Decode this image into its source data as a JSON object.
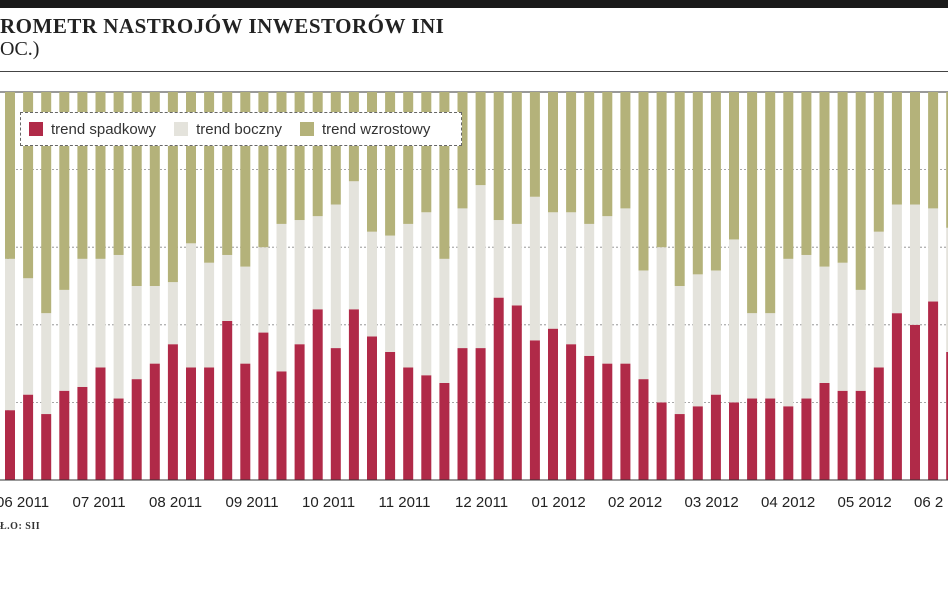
{
  "header": {
    "title": "ROMETR NASTROJÓW INWESTORÓW INI",
    "subtitle": "OC.)"
  },
  "source": "Ł.O: SII",
  "colors": {
    "spadkowy": "#b02a48",
    "boczny": "#e4e3dc",
    "wzrostowy": "#b4b27a",
    "grid": "#888888"
  },
  "chart_data": {
    "type": "bar",
    "stacked": true,
    "ylim": [
      0,
      100
    ],
    "grid": true,
    "legend_position": "top-left",
    "legend": [
      "trend spadkowy",
      "trend boczny",
      "trend wzrostowy"
    ],
    "month_labels": [
      "06 2011",
      "07 2011",
      "08 2011",
      "09 2011",
      "10 2011",
      "11 2011",
      "12 2011",
      "01 2012",
      "02 2012",
      "03 2012",
      "04 2012",
      "05 2012",
      "06 2"
    ],
    "series": [
      {
        "name": "trend spadkowy",
        "values": [
          18,
          22,
          17,
          23,
          24,
          29,
          21,
          26,
          30,
          35,
          29,
          29,
          41,
          30,
          38,
          28,
          35,
          44,
          34,
          44,
          37,
          33,
          29,
          27,
          25,
          34,
          34,
          47,
          45,
          36,
          39,
          35,
          32,
          30,
          30,
          26,
          20,
          17,
          19,
          22,
          20,
          21,
          21,
          19,
          21,
          25,
          23,
          23,
          29,
          43,
          40,
          46,
          33
        ]
      },
      {
        "name": "trend boczny",
        "values": [
          39,
          30,
          26,
          26,
          33,
          28,
          37,
          24,
          20,
          16,
          32,
          27,
          17,
          25,
          22,
          38,
          32,
          24,
          37,
          33,
          27,
          30,
          37,
          42,
          32,
          36,
          42,
          20,
          21,
          37,
          30,
          34,
          34,
          38,
          40,
          28,
          40,
          33,
          34,
          32,
          42,
          22,
          22,
          38,
          37,
          30,
          33,
          26,
          35,
          28,
          31,
          24,
          32
        ]
      },
      {
        "name": "trend wzrostowy",
        "values": [
          43,
          48,
          57,
          51,
          43,
          43,
          42,
          50,
          50,
          49,
          39,
          44,
          42,
          45,
          40,
          34,
          33,
          32,
          29,
          23,
          36,
          37,
          34,
          31,
          43,
          30,
          24,
          33,
          34,
          27,
          31,
          31,
          34,
          32,
          30,
          46,
          40,
          50,
          47,
          46,
          38,
          57,
          57,
          43,
          42,
          45,
          44,
          51,
          36,
          29,
          29,
          30,
          35
        ]
      }
    ]
  }
}
